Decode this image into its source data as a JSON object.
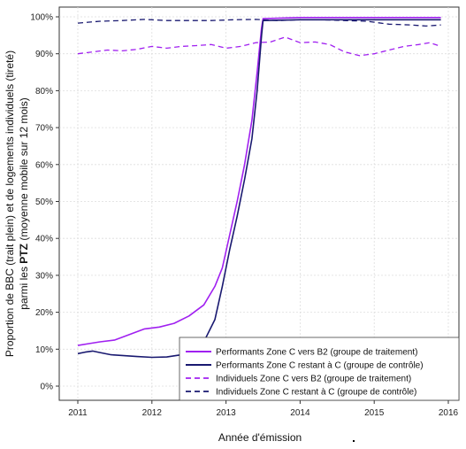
{
  "chart_data": {
    "type": "line",
    "xlabel": "Année d'émission",
    "ylabel_line1": "Proportion de BBC (trait plein) et de logements individuels (tireté)",
    "ylabel_line2_prefix": "parmi les ",
    "ylabel_line2_bold": "PTZ",
    "ylabel_line2_suffix": " (moyenne mobile sur 12 mois)",
    "xlim": [
      2011,
      2016
    ],
    "ylim": [
      0,
      100
    ],
    "x_ticks": [
      "2011",
      "2012",
      "2013",
      "2014",
      "2015",
      "2016"
    ],
    "y_ticks": [
      "0%",
      "10%",
      "20%",
      "30%",
      "40%",
      "50%",
      "60%",
      "70%",
      "80%",
      "90%",
      "100%"
    ],
    "legend_position": "bottom-right",
    "series": [
      {
        "name": "Performants Zone C vers B2 (groupe de traitement)",
        "color": "#a020f0",
        "dash": "solid",
        "width": 1.6,
        "points": [
          [
            2011,
            11
          ],
          [
            2011.15,
            11.5
          ],
          [
            2011.3,
            12
          ],
          [
            2011.5,
            12.5
          ],
          [
            2011.7,
            14
          ],
          [
            2011.9,
            15.5
          ],
          [
            2012.1,
            16
          ],
          [
            2012.3,
            17
          ],
          [
            2012.5,
            19
          ],
          [
            2012.7,
            22
          ],
          [
            2012.85,
            27
          ],
          [
            2012.95,
            32
          ],
          [
            2013.05,
            41
          ],
          [
            2013.15,
            50
          ],
          [
            2013.25,
            60
          ],
          [
            2013.35,
            72
          ],
          [
            2013.42,
            85
          ],
          [
            2013.48,
            97
          ],
          [
            2013.5,
            99.5
          ],
          [
            2014,
            99.8
          ],
          [
            2015,
            99.8
          ],
          [
            2015.9,
            99.8
          ]
        ]
      },
      {
        "name": "Performants Zone C restant à C (groupe de contrôle)",
        "color": "#191970",
        "dash": "solid",
        "width": 1.6,
        "points": [
          [
            2011,
            8.8
          ],
          [
            2011.1,
            9.2
          ],
          [
            2011.2,
            9.5
          ],
          [
            2011.3,
            9.1
          ],
          [
            2011.45,
            8.5
          ],
          [
            2011.6,
            8.3
          ],
          [
            2011.8,
            8.0
          ],
          [
            2012,
            7.8
          ],
          [
            2012.2,
            7.9
          ],
          [
            2012.4,
            8.5
          ],
          [
            2012.55,
            9.5
          ],
          [
            2012.7,
            12
          ],
          [
            2012.85,
            18
          ],
          [
            2012.95,
            27
          ],
          [
            2013.05,
            37
          ],
          [
            2013.15,
            46
          ],
          [
            2013.25,
            56
          ],
          [
            2013.35,
            67
          ],
          [
            2013.42,
            80
          ],
          [
            2013.48,
            95
          ],
          [
            2013.5,
            99
          ],
          [
            2014,
            99.2
          ],
          [
            2015,
            99.2
          ],
          [
            2015.9,
            99.2
          ]
        ]
      },
      {
        "name": "Individuels Zone C vers B2 (groupe de traitement)",
        "color": "#a020f0",
        "dash": "6,4",
        "width": 1.3,
        "points": [
          [
            2011,
            90
          ],
          [
            2011.2,
            90.5
          ],
          [
            2011.4,
            91
          ],
          [
            2011.6,
            90.8
          ],
          [
            2011.8,
            91.2
          ],
          [
            2012,
            92
          ],
          [
            2012.2,
            91.5
          ],
          [
            2012.4,
            92
          ],
          [
            2012.6,
            92.2
          ],
          [
            2012.8,
            92.5
          ],
          [
            2013,
            91.5
          ],
          [
            2013.2,
            92
          ],
          [
            2013.4,
            93
          ],
          [
            2013.6,
            93.2
          ],
          [
            2013.8,
            94.5
          ],
          [
            2014,
            93
          ],
          [
            2014.2,
            93.2
          ],
          [
            2014.4,
            92.5
          ],
          [
            2014.6,
            90.5
          ],
          [
            2014.8,
            89.5
          ],
          [
            2015,
            90
          ],
          [
            2015.2,
            91
          ],
          [
            2015.4,
            92
          ],
          [
            2015.6,
            92.5
          ],
          [
            2015.75,
            93
          ],
          [
            2015.9,
            92
          ]
        ]
      },
      {
        "name": "Individuels Zone C restant à C (groupe de contrôle)",
        "color": "#191970",
        "dash": "6,4",
        "width": 1.3,
        "points": [
          [
            2011,
            98.3
          ],
          [
            2011.3,
            98.8
          ],
          [
            2011.6,
            99
          ],
          [
            2011.9,
            99.3
          ],
          [
            2012.2,
            99
          ],
          [
            2012.5,
            99
          ],
          [
            2012.8,
            99
          ],
          [
            2013.1,
            99.2
          ],
          [
            2013.4,
            99.3
          ],
          [
            2013.7,
            99
          ],
          [
            2014,
            99.2
          ],
          [
            2014.3,
            99.2
          ],
          [
            2014.6,
            99
          ],
          [
            2014.9,
            98.8
          ],
          [
            2015.2,
            98
          ],
          [
            2015.5,
            97.8
          ],
          [
            2015.7,
            97.5
          ],
          [
            2015.9,
            97.8
          ]
        ]
      }
    ]
  }
}
